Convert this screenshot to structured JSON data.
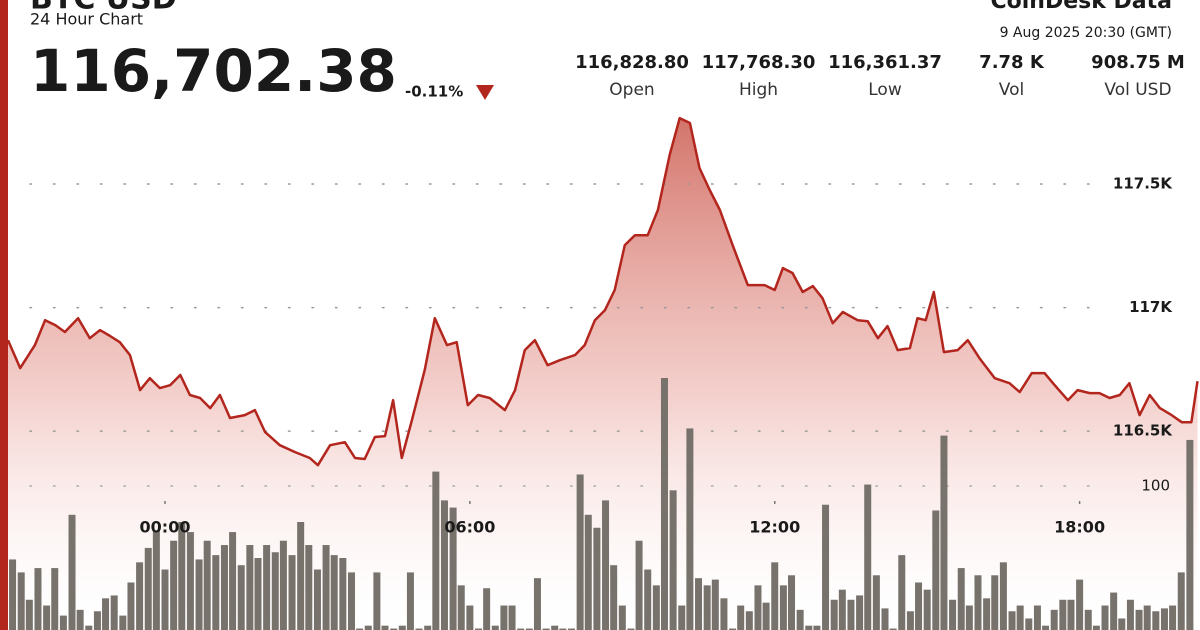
{
  "chart_data": {
    "type": "line",
    "title": "BTC USD",
    "subtitle": "24 Hour Chart",
    "price": "116,702.38",
    "change": "-0.11%",
    "brand": "CoinDesk Data",
    "timestamp": "9 Aug 2025 20:30 (GMT)",
    "stats": [
      {
        "value": "116,828.80",
        "label": "Open"
      },
      {
        "value": "117,768.30",
        "label": "High"
      },
      {
        "value": "116,361.37",
        "label": "Low"
      },
      {
        "value": "7.78 K",
        "label": "Vol"
      },
      {
        "value": "908.75 M",
        "label": "Vol USD"
      }
    ],
    "xlim": [
      -3.09,
      20.33
    ],
    "xticks": [
      {
        "value": 0,
        "label": "00:00"
      },
      {
        "value": 6,
        "label": "06:00"
      },
      {
        "value": 12,
        "label": "12:00"
      },
      {
        "value": 18,
        "label": "18:00"
      }
    ],
    "ylim": [
      115695,
      118245
    ],
    "yticks": [
      {
        "value": 116500,
        "label": "116.5K"
      },
      {
        "value": 117000,
        "label": "117K"
      },
      {
        "value": 117500,
        "label": "117.5K"
      }
    ],
    "y2lim": [
      0,
      437.5
    ],
    "y2ticks": [
      100
    ],
    "grid": true,
    "series": [
      {
        "type": "line",
        "color": "#b3261e",
        "x": [
          -3.09,
          -2.85,
          -2.56,
          -2.36,
          -2.16,
          -1.97,
          -1.71,
          -1.48,
          -1.28,
          -1.08,
          -0.89,
          -0.69,
          -0.49,
          -0.3,
          -0.1,
          0.1,
          0.3,
          0.49,
          0.69,
          0.89,
          1.08,
          1.28,
          1.57,
          1.77,
          1.97,
          2.26,
          2.56,
          2.85,
          3.01,
          3.25,
          3.54,
          3.74,
          3.93,
          4.13,
          4.33,
          4.49,
          4.66,
          4.86,
          5.11,
          5.31,
          5.55,
          5.74,
          5.96,
          6.16,
          6.39,
          6.69,
          6.89,
          7.08,
          7.28,
          7.53,
          7.77,
          8.07,
          8.26,
          8.46,
          8.66,
          8.85,
          9.05,
          9.25,
          9.5,
          9.7,
          9.93,
          10.13,
          10.33,
          10.52,
          10.72,
          10.92,
          11.17,
          11.47,
          11.8,
          12,
          12.16,
          12.35,
          12.55,
          12.75,
          12.94,
          13.14,
          13.34,
          13.63,
          13.83,
          14.03,
          14.22,
          14.42,
          14.66,
          14.81,
          14.97,
          15.13,
          15.33,
          15.6,
          15.8,
          16.03,
          16.33,
          16.62,
          16.82,
          17.06,
          17.31,
          17.51,
          17.77,
          17.96,
          18.2,
          18.39,
          18.59,
          18.79,
          18.98,
          19.18,
          19.38,
          19.58,
          19.81,
          20.01,
          20.2,
          20.32
        ],
        "values": [
          116868,
          116755,
          116848,
          116949,
          116929,
          116901,
          116957,
          116876,
          116909,
          116885,
          116860,
          116808,
          116666,
          116714,
          116674,
          116686,
          116727,
          116646,
          116634,
          116593,
          116646,
          116553,
          116565,
          116585,
          116496,
          116443,
          116415,
          116391,
          116362,
          116443,
          116455,
          116391,
          116387,
          116476,
          116480,
          116625,
          116391,
          116544,
          116747,
          116957,
          116848,
          116860,
          116605,
          116646,
          116634,
          116585,
          116666,
          116828,
          116868,
          116767,
          116787,
          116808,
          116848,
          116949,
          116990,
          117071,
          117253,
          117293,
          117293,
          117395,
          117617,
          117767,
          117747,
          117565,
          117476,
          117395,
          117253,
          117091,
          117091,
          117071,
          117160,
          117140,
          117063,
          117087,
          117038,
          116937,
          116982,
          116949,
          116945,
          116876,
          116925,
          116828,
          116836,
          116957,
          116949,
          117063,
          116820,
          116828,
          116868,
          116795,
          116714,
          116694,
          116658,
          116735,
          116735,
          116686,
          116625,
          116666,
          116654,
          116654,
          116634,
          116646,
          116694,
          116565,
          116646,
          116593,
          116565,
          116536,
          116536,
          116702
        ]
      },
      {
        "type": "bar",
        "axis": "y2",
        "color": "#77726b",
        "x": [
          -3,
          -2.83,
          -2.67,
          -2.5,
          -2.33,
          -2.17,
          -2,
          -1.83,
          -1.67,
          -1.5,
          -1.33,
          -1.17,
          -1,
          -0.83,
          -0.67,
          -0.5,
          -0.33,
          -0.17,
          0,
          0.17,
          0.33,
          0.5,
          0.67,
          0.83,
          1,
          1.17,
          1.33,
          1.5,
          1.67,
          1.83,
          2,
          2.17,
          2.33,
          2.5,
          2.67,
          2.83,
          3,
          3.17,
          3.33,
          3.5,
          3.67,
          3.83,
          4,
          4.17,
          4.33,
          4.5,
          4.67,
          4.83,
          5,
          5.17,
          5.33,
          5.5,
          5.67,
          5.83,
          6,
          6.17,
          6.33,
          6.5,
          6.67,
          6.83,
          7,
          7.17,
          7.33,
          7.5,
          7.67,
          7.83,
          8,
          8.17,
          8.33,
          8.5,
          8.67,
          8.83,
          9,
          9.17,
          9.33,
          9.5,
          9.67,
          9.83,
          10,
          10.17,
          10.33,
          10.5,
          10.67,
          10.83,
          11,
          11.17,
          11.33,
          11.5,
          11.67,
          11.83,
          12,
          12.17,
          12.33,
          12.5,
          12.67,
          12.83,
          13,
          13.17,
          13.33,
          13.5,
          13.67,
          13.83,
          14,
          14.17,
          14.33,
          14.5,
          14.67,
          14.83,
          15,
          15.17,
          15.33,
          15.5,
          15.67,
          15.83,
          16,
          16.17,
          16.33,
          16.5,
          16.67,
          16.83,
          17,
          17.17,
          17.33,
          17.5,
          17.67,
          17.83,
          18,
          18.17,
          18.33,
          18.5,
          18.67,
          18.83,
          19,
          19.17,
          19.33,
          19.5,
          19.67,
          19.83,
          20,
          20.17
        ],
        "values": [
          49,
          40,
          21,
          43,
          17,
          43,
          10,
          80,
          14,
          3,
          13,
          22,
          24,
          10,
          33,
          47,
          57,
          69,
          42,
          62,
          75,
          68,
          49,
          62,
          52,
          59,
          68,
          45,
          59,
          50,
          59,
          54,
          62,
          52,
          75,
          59,
          42,
          59,
          52,
          50,
          40,
          1,
          3,
          40,
          3,
          1,
          3,
          40,
          1,
          3,
          110,
          90,
          85,
          31,
          17,
          1,
          29,
          3,
          17,
          17,
          1,
          1,
          36,
          1,
          3,
          1,
          1,
          108,
          80,
          71,
          90,
          45,
          17,
          1,
          62,
          42,
          31,
          175,
          97,
          17,
          140,
          36,
          31,
          35,
          22,
          1,
          17,
          13,
          31,
          19,
          47,
          31,
          38,
          14,
          3,
          3,
          87,
          21,
          28,
          21,
          24,
          101,
          38,
          15,
          1,
          52,
          13,
          33,
          28,
          83,
          135,
          21,
          43,
          17,
          38,
          22,
          38,
          47,
          13,
          17,
          8,
          17,
          3,
          14,
          21,
          21,
          35,
          14,
          3,
          17,
          26,
          8,
          21,
          14,
          17,
          13,
          15,
          17,
          40,
          132
        ]
      }
    ]
  }
}
